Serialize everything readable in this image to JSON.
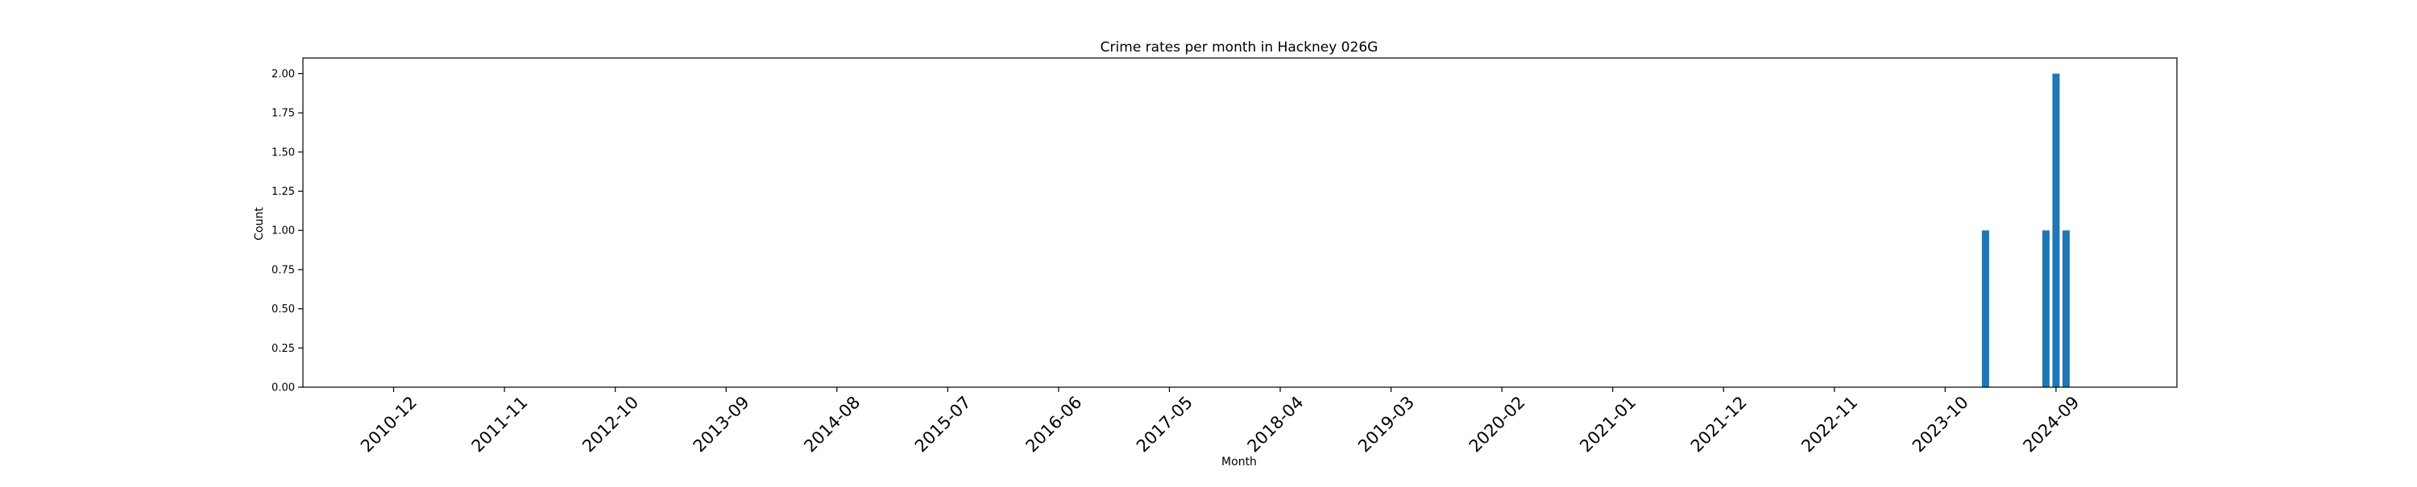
{
  "chart_data": {
    "type": "bar",
    "title": "Crime rates per month in Hackney 026G",
    "xlabel": "Month",
    "ylabel": "Count",
    "ylim": [
      0,
      2.1
    ],
    "y_ticks": [
      "0.00",
      "0.25",
      "0.50",
      "0.75",
      "1.00",
      "1.25",
      "1.50",
      "1.75",
      "2.00"
    ],
    "x_ticks": [
      "2010-12",
      "2011-11",
      "2012-10",
      "2013-09",
      "2014-08",
      "2015-07",
      "2016-06",
      "2017-05",
      "2018-04",
      "2019-03",
      "2020-02",
      "2021-01",
      "2021-12",
      "2022-11",
      "2023-10",
      "2024-09"
    ],
    "x_range": [
      "2010-03",
      "2025-09"
    ],
    "categories": [
      "2024-02",
      "2024-08",
      "2024-09",
      "2024-10"
    ],
    "values": [
      1,
      1,
      2,
      1
    ],
    "bar_color": "#1f77b4",
    "grid": false,
    "legend": false
  }
}
